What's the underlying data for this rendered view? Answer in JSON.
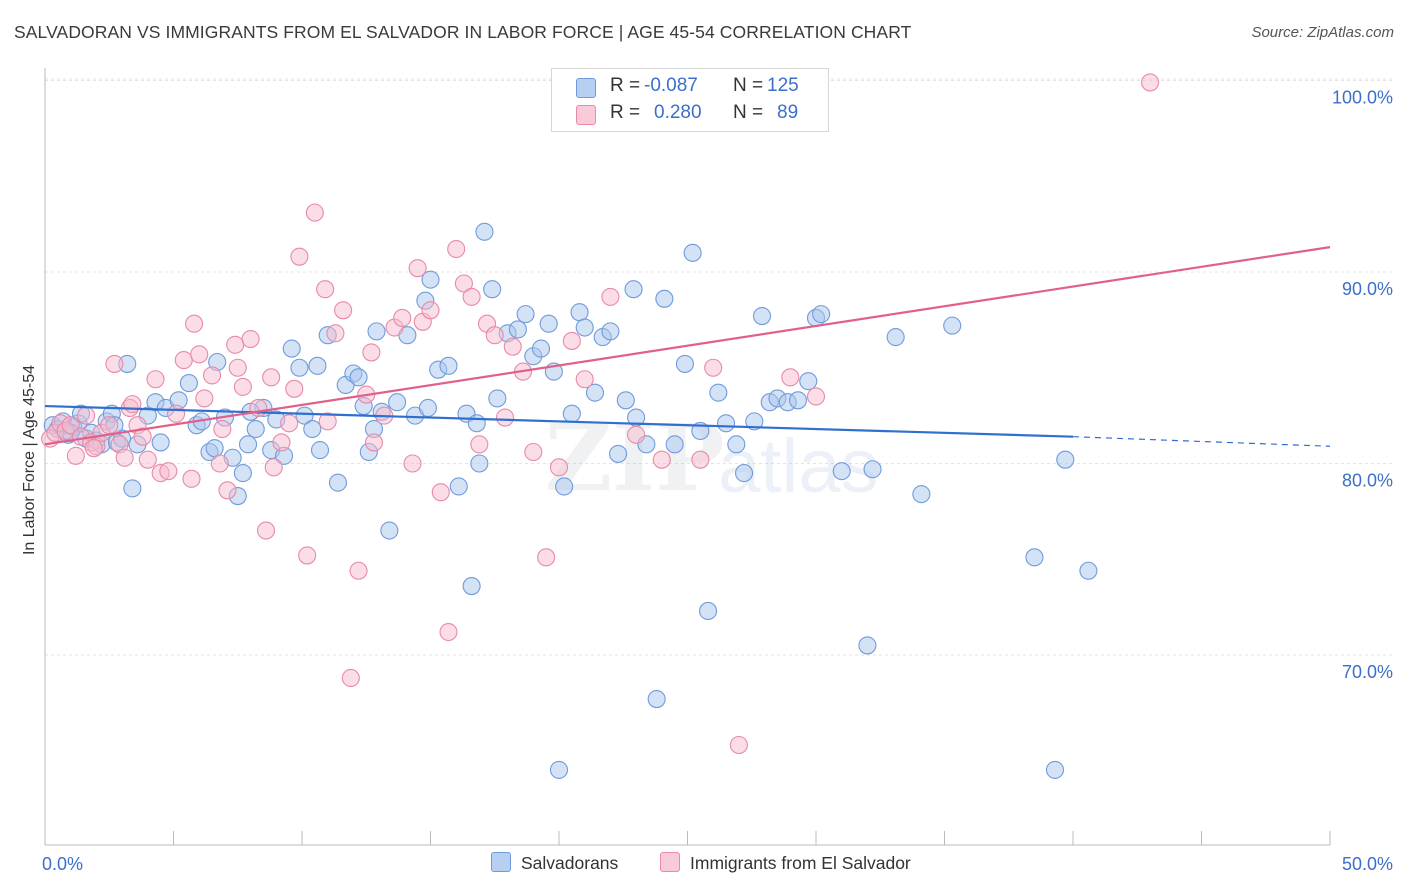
{
  "title": "SALVADORAN VS IMMIGRANTS FROM EL SALVADOR IN LABOR FORCE | AGE 45-54 CORRELATION CHART",
  "source": "Source: ZipAtlas.com",
  "legend": {
    "rows": [
      {
        "r_label": "R =",
        "r_value": "-0.087",
        "n_label": "N =",
        "n_value": "125"
      },
      {
        "r_label": "R =",
        "r_value": "0.280",
        "n_label": "N =",
        "n_value": "89"
      }
    ]
  },
  "bottom_legend": [
    "Salvadorans",
    "Immigrants from El Salvador"
  ],
  "colors": {
    "blue_fill": "#a9c5ee",
    "blue_stroke": "#6f9bdc",
    "blue_line": "#2f6fcf",
    "pink_fill": "#f6bccd",
    "pink_stroke": "#e88aa8",
    "pink_line": "#e0608a",
    "tick_label": "#3b6fc9",
    "grid": "#e3e3e3"
  },
  "chart_data": {
    "type": "scatter",
    "title": "SALVADORAN VS IMMIGRANTS FROM EL SALVADOR IN LABOR FORCE | AGE 45-54 CORRELATION CHART",
    "xlabel": "",
    "ylabel": "In Labor Force | Age 45-54",
    "xlim": [
      0,
      50
    ],
    "ylim": [
      60,
      102
    ],
    "x_tick_labels": [
      "0.0%",
      "50.0%"
    ],
    "y_ticks": [
      70,
      80,
      90,
      100
    ],
    "y_tick_labels": [
      "70.0%",
      "80.0%",
      "90.0%",
      "100.0%"
    ],
    "grid": true,
    "legend_position": "top-center",
    "watermark": "ZIPatlas",
    "series": [
      {
        "name": "Salvadorans",
        "R": -0.087,
        "N": 125,
        "trend": {
          "x0": 0,
          "y0": 83.0,
          "x1": 40,
          "y1": 81.4,
          "dashed_to_x": 50,
          "dashed_to_y": 80.9
        },
        "points": [
          [
            0.3,
            82.0
          ],
          [
            0.5,
            81.8
          ],
          [
            0.7,
            82.2
          ],
          [
            0.9,
            81.5
          ],
          [
            1.1,
            81.9
          ],
          [
            1.3,
            82.1
          ],
          [
            1.4,
            82.6
          ],
          [
            1.6,
            81.3
          ],
          [
            1.8,
            81.6
          ],
          [
            2.0,
            81.2
          ],
          [
            2.2,
            81.0
          ],
          [
            2.4,
            82.2
          ],
          [
            2.6,
            82.6
          ],
          [
            2.8,
            81.1
          ],
          [
            3.0,
            81.3
          ],
          [
            3.2,
            85.2
          ],
          [
            3.4,
            78.7
          ],
          [
            3.6,
            81.0
          ],
          [
            4.0,
            82.5
          ],
          [
            4.3,
            83.2
          ],
          [
            4.7,
            82.9
          ],
          [
            5.2,
            83.3
          ],
          [
            5.6,
            84.2
          ],
          [
            5.9,
            82.0
          ],
          [
            6.1,
            82.2
          ],
          [
            6.4,
            80.6
          ],
          [
            6.7,
            85.3
          ],
          [
            7.0,
            82.4
          ],
          [
            7.3,
            80.3
          ],
          [
            7.5,
            78.3
          ],
          [
            7.7,
            79.5
          ],
          [
            7.9,
            81.0
          ],
          [
            8.2,
            81.8
          ],
          [
            8.5,
            82.9
          ],
          [
            8.8,
            80.7
          ],
          [
            9.0,
            82.3
          ],
          [
            9.3,
            80.4
          ],
          [
            9.6,
            86.0
          ],
          [
            9.9,
            85.0
          ],
          [
            10.1,
            82.5
          ],
          [
            10.4,
            81.8
          ],
          [
            10.7,
            80.7
          ],
          [
            11.0,
            86.7
          ],
          [
            11.4,
            79.0
          ],
          [
            11.7,
            84.1
          ],
          [
            12.0,
            84.7
          ],
          [
            12.2,
            84.5
          ],
          [
            12.4,
            83.0
          ],
          [
            12.6,
            80.6
          ],
          [
            12.9,
            86.9
          ],
          [
            13.1,
            82.7
          ],
          [
            13.4,
            76.5
          ],
          [
            13.7,
            83.2
          ],
          [
            14.1,
            86.7
          ],
          [
            14.4,
            82.5
          ],
          [
            14.8,
            88.5
          ],
          [
            15.0,
            89.6
          ],
          [
            15.3,
            84.9
          ],
          [
            15.7,
            85.1
          ],
          [
            16.1,
            78.8
          ],
          [
            16.4,
            82.6
          ],
          [
            16.6,
            73.6
          ],
          [
            16.9,
            80.0
          ],
          [
            17.1,
            92.1
          ],
          [
            17.4,
            89.1
          ],
          [
            17.6,
            83.4
          ],
          [
            18.0,
            86.8
          ],
          [
            18.4,
            87.0
          ],
          [
            18.7,
            87.8
          ],
          [
            19.0,
            85.6
          ],
          [
            19.3,
            86.0
          ],
          [
            19.6,
            87.3
          ],
          [
            20.0,
            64.0
          ],
          [
            20.2,
            78.8
          ],
          [
            20.5,
            82.6
          ],
          [
            20.8,
            87.9
          ],
          [
            21.0,
            87.1
          ],
          [
            21.4,
            83.7
          ],
          [
            21.7,
            86.6
          ],
          [
            22.0,
            86.9
          ],
          [
            22.3,
            80.5
          ],
          [
            22.6,
            83.3
          ],
          [
            22.9,
            89.1
          ],
          [
            23.4,
            81.0
          ],
          [
            23.8,
            67.7
          ],
          [
            24.1,
            88.6
          ],
          [
            24.5,
            81.0
          ],
          [
            24.9,
            85.2
          ],
          [
            25.2,
            91.0
          ],
          [
            25.5,
            81.7
          ],
          [
            25.8,
            72.3
          ],
          [
            26.2,
            83.7
          ],
          [
            26.5,
            82.1
          ],
          [
            26.9,
            81.0
          ],
          [
            27.2,
            79.5
          ],
          [
            27.6,
            82.2
          ],
          [
            27.9,
            87.7
          ],
          [
            28.2,
            83.2
          ],
          [
            28.5,
            83.4
          ],
          [
            28.9,
            83.2
          ],
          [
            29.3,
            83.3
          ],
          [
            29.7,
            84.3
          ],
          [
            30.0,
            87.6
          ],
          [
            30.2,
            87.8
          ],
          [
            31.0,
            79.6
          ],
          [
            32.0,
            70.5
          ],
          [
            32.2,
            79.7
          ],
          [
            33.1,
            86.6
          ],
          [
            34.1,
            78.4
          ],
          [
            35.3,
            87.2
          ],
          [
            38.5,
            75.1
          ],
          [
            39.3,
            64.0
          ],
          [
            39.7,
            80.2
          ],
          [
            40.6,
            74.4
          ],
          [
            1.0,
            81.6
          ],
          [
            2.7,
            82.0
          ],
          [
            4.5,
            81.1
          ],
          [
            6.6,
            80.8
          ],
          [
            8.0,
            82.7
          ],
          [
            10.6,
            85.1
          ],
          [
            12.8,
            81.8
          ],
          [
            14.9,
            82.9
          ],
          [
            16.8,
            82.1
          ],
          [
            19.8,
            84.8
          ],
          [
            23.0,
            82.4
          ]
        ]
      },
      {
        "name": "Immigrants from El Salvador",
        "R": 0.28,
        "N": 89,
        "trend": {
          "x0": 0,
          "y0": 81.0,
          "x1": 50,
          "y1": 91.3
        },
        "points": [
          [
            0.2,
            81.3
          ],
          [
            0.4,
            81.6
          ],
          [
            0.6,
            82.1
          ],
          [
            0.8,
            81.7
          ],
          [
            1.0,
            82.0
          ],
          [
            1.2,
            80.4
          ],
          [
            1.4,
            81.4
          ],
          [
            1.6,
            82.5
          ],
          [
            1.8,
            81.1
          ],
          [
            2.0,
            80.9
          ],
          [
            2.2,
            81.6
          ],
          [
            2.5,
            82.0
          ],
          [
            2.7,
            85.2
          ],
          [
            2.9,
            81.0
          ],
          [
            3.1,
            80.3
          ],
          [
            3.3,
            82.9
          ],
          [
            3.6,
            82.0
          ],
          [
            3.8,
            81.4
          ],
          [
            4.0,
            80.2
          ],
          [
            4.3,
            84.4
          ],
          [
            4.5,
            79.5
          ],
          [
            4.8,
            79.6
          ],
          [
            5.1,
            82.6
          ],
          [
            5.4,
            85.4
          ],
          [
            5.7,
            79.2
          ],
          [
            6.0,
            85.7
          ],
          [
            6.2,
            83.4
          ],
          [
            6.5,
            84.6
          ],
          [
            6.8,
            80.0
          ],
          [
            7.1,
            78.6
          ],
          [
            7.4,
            86.2
          ],
          [
            7.7,
            84.0
          ],
          [
            8.0,
            86.5
          ],
          [
            8.3,
            82.9
          ],
          [
            8.6,
            76.5
          ],
          [
            8.9,
            79.8
          ],
          [
            9.2,
            81.1
          ],
          [
            9.5,
            82.1
          ],
          [
            9.9,
            90.8
          ],
          [
            10.2,
            75.2
          ],
          [
            10.5,
            93.1
          ],
          [
            10.9,
            89.1
          ],
          [
            11.3,
            86.8
          ],
          [
            11.6,
            88.0
          ],
          [
            11.9,
            68.8
          ],
          [
            12.2,
            74.4
          ],
          [
            12.5,
            83.6
          ],
          [
            12.8,
            81.1
          ],
          [
            13.2,
            82.5
          ],
          [
            13.6,
            87.1
          ],
          [
            13.9,
            87.6
          ],
          [
            14.3,
            80.0
          ],
          [
            14.7,
            87.4
          ],
          [
            15.0,
            88.0
          ],
          [
            15.4,
            78.5
          ],
          [
            15.7,
            71.2
          ],
          [
            16.0,
            91.2
          ],
          [
            16.3,
            89.4
          ],
          [
            16.6,
            88.7
          ],
          [
            16.9,
            81.0
          ],
          [
            17.2,
            87.3
          ],
          [
            17.5,
            86.7
          ],
          [
            17.9,
            82.4
          ],
          [
            18.2,
            86.1
          ],
          [
            18.6,
            84.8
          ],
          [
            19.0,
            80.6
          ],
          [
            19.5,
            75.1
          ],
          [
            20.0,
            79.8
          ],
          [
            20.5,
            86.4
          ],
          [
            21.0,
            84.4
          ],
          [
            22.0,
            88.7
          ],
          [
            23.0,
            81.5
          ],
          [
            24.0,
            80.2
          ],
          [
            25.5,
            80.2
          ],
          [
            26.0,
            85.0
          ],
          [
            27.0,
            65.3
          ],
          [
            29.0,
            84.5
          ],
          [
            30.0,
            83.5
          ],
          [
            43.0,
            99.9
          ],
          [
            5.8,
            87.3
          ],
          [
            7.5,
            85.0
          ],
          [
            9.7,
            83.9
          ],
          [
            11.0,
            82.2
          ],
          [
            12.7,
            85.8
          ],
          [
            14.5,
            90.2
          ],
          [
            3.4,
            83.1
          ],
          [
            1.9,
            80.8
          ],
          [
            6.9,
            81.8
          ],
          [
            8.8,
            84.5
          ]
        ]
      }
    ]
  }
}
